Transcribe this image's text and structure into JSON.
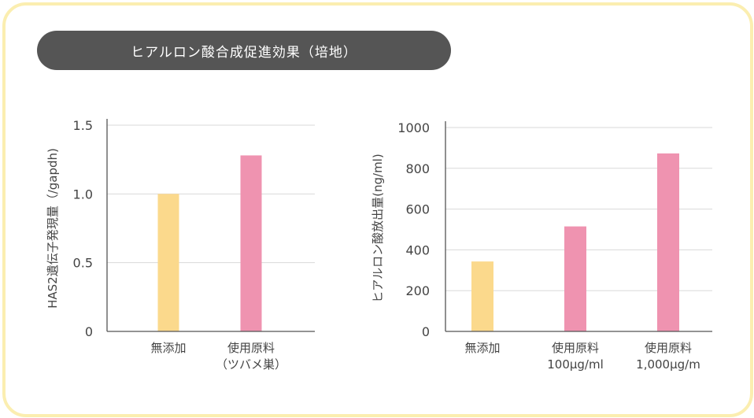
{
  "title": "ヒアルロン酸合成促進効果（培地）",
  "colors": {
    "frame": "#fbeeb0",
    "pill": "#555555",
    "bar_yellow": "#fbd98c",
    "bar_pink": "#ef93b0",
    "axis": "#555555",
    "grid": "#d9d9d9"
  },
  "chart_data": [
    {
      "type": "bar",
      "ylabel": "HAS2遺伝子発現量（/gapdh)",
      "ylim": [
        0,
        1.5
      ],
      "yticks": [
        0,
        0.5,
        1.0,
        1.5
      ],
      "ytick_labels": [
        "0",
        "0.5",
        "1.0",
        "1.5"
      ],
      "categories": [
        [
          "無添加"
        ],
        [
          "使用原料",
          "（ツバメ巣）"
        ]
      ],
      "values": [
        1.0,
        1.28
      ],
      "bar_colors": [
        "#fbd98c",
        "#ef93b0"
      ],
      "grid": true
    },
    {
      "type": "bar",
      "ylabel": "ヒアルロン酸放出量(ng/ml)",
      "ylim": [
        0,
        1000
      ],
      "yticks": [
        0,
        200,
        400,
        600,
        800,
        1000
      ],
      "ytick_labels": [
        "0",
        "200",
        "400",
        "600",
        "800",
        "1000"
      ],
      "categories": [
        [
          "無添加"
        ],
        [
          "使用原料",
          "100μg/ml"
        ],
        [
          "使用原料",
          "1,000μg/m"
        ]
      ],
      "values": [
        343,
        515,
        873
      ],
      "bar_colors": [
        "#fbd98c",
        "#ef93b0",
        "#ef93b0"
      ],
      "grid": true
    }
  ]
}
